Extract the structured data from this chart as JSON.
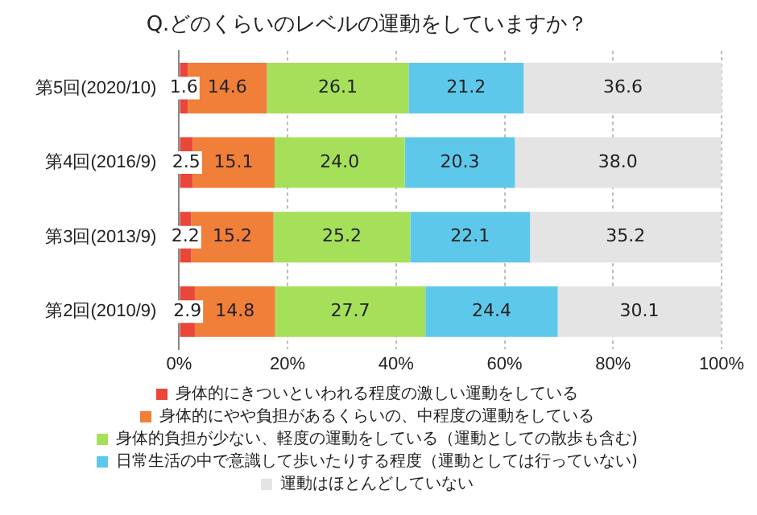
{
  "chart_data": {
    "type": "bar",
    "orientation": "horizontal",
    "stacked": true,
    "title": "Q.どのくらいのレベルの運動をしていますか？",
    "categories": [
      "第5回(2020/10)",
      "第4回(2016/9)",
      "第3回(2013/9)",
      "第2回(2010/9)"
    ],
    "series": [
      {
        "name": "身体的にきついといわれる程度の激しい運動をしている",
        "color": "#e8473a",
        "values": [
          1.6,
          2.5,
          2.2,
          2.9
        ],
        "value_labels": [
          "1.6",
          "2.5",
          "2.2",
          "2.9"
        ]
      },
      {
        "name": "身体的にやや負担があるくらいの、中程度の運動をしている",
        "color": "#f07f3a",
        "values": [
          14.6,
          15.1,
          15.2,
          14.8
        ],
        "value_labels": [
          "14.6",
          "15.1",
          "15.2",
          "14.8"
        ]
      },
      {
        "name": "身体的負担が少ない、軽度の運動をしている（運動としての散歩も含む)",
        "color": "#a6e05a",
        "values": [
          26.1,
          24.0,
          25.2,
          27.7
        ],
        "value_labels": [
          "26.1",
          "24.0",
          "25.2",
          "27.7"
        ]
      },
      {
        "name": "日常生活の中で意識して歩いたりする程度（運動としては行っていない)",
        "color": "#5ec8ea",
        "values": [
          21.2,
          20.3,
          22.1,
          24.4
        ],
        "value_labels": [
          "21.2",
          "20.3",
          "22.1",
          "24.4"
        ]
      },
      {
        "name": "運動はほとんどしていない",
        "color": "#e4e4e4",
        "values": [
          36.6,
          38.0,
          35.2,
          30.1
        ],
        "value_labels": [
          "36.6",
          "38.0",
          "35.2",
          "30.1"
        ]
      }
    ],
    "xlim": [
      0,
      100
    ],
    "xticks": [
      {
        "value": 0,
        "label": "0%"
      },
      {
        "value": 20,
        "label": "20%"
      },
      {
        "value": 40,
        "label": "40%"
      },
      {
        "value": 60,
        "label": "60%"
      },
      {
        "value": 80,
        "label": "80%"
      },
      {
        "value": 100,
        "label": "100%"
      }
    ],
    "grid": "x",
    "legend": "bottom"
  }
}
